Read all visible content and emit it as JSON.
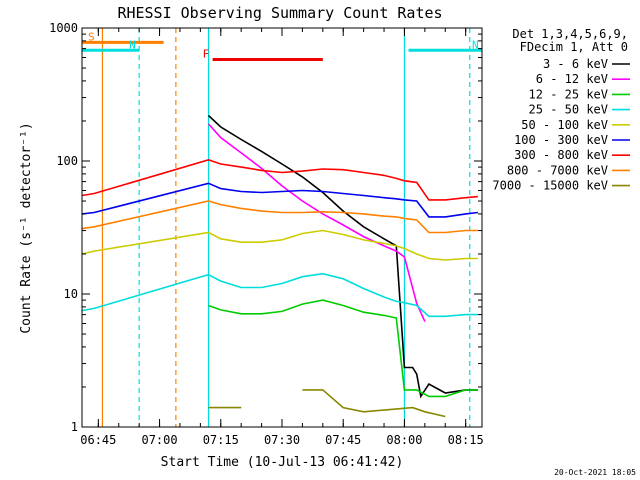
{
  "chart_data": {
    "type": "line",
    "title": "RHESSI Observing Summary Count Rates",
    "xlabel": "Start Time (10-Jul-13 06:41:42)",
    "ylabel": "Count Rate (s⁻¹ detector⁻¹)",
    "xlim": [
      "06:41",
      "08:19"
    ],
    "ylim": [
      1,
      1000
    ],
    "y_scale": "log",
    "x_ticks": [
      "06:45",
      "07:00",
      "07:15",
      "07:30",
      "07:45",
      "08:00",
      "08:15"
    ],
    "y_ticks": [
      "1",
      "10",
      "100",
      "1000"
    ],
    "legend_header": [
      "Det 1,3,4,5,6,9,",
      "FDecim 1, Att 0"
    ],
    "legend_placement": "right",
    "footer": "20-Oct-2021 18:05",
    "series": [
      {
        "name": "3 - 6 keV",
        "color": "#000000",
        "x": [
          "06:41",
          "06:43",
          "06:44",
          "07:12",
          "07:15",
          "07:20",
          "07:25",
          "07:30",
          "07:35",
          "07:40",
          "07:45",
          "07:50",
          "07:55",
          "07:58",
          "08:00",
          "08:01",
          "08:02",
          "08:03",
          "08:04",
          "08:06",
          "08:10",
          "08:15",
          "08:18"
        ],
        "y": [
          null,
          null,
          null,
          220,
          180,
          145,
          118,
          95,
          76,
          58,
          42,
          32,
          26,
          23,
          2.8,
          2.8,
          2.8,
          2.5,
          1.7,
          2.1,
          1.8,
          1.9,
          1.9
        ]
      },
      {
        "name": "6 - 12 keV",
        "color": "#ff00ff",
        "x": [
          "07:12",
          "07:15",
          "07:20",
          "07:25",
          "07:30",
          "07:35",
          "07:40",
          "07:45",
          "07:50",
          "07:55",
          "07:58",
          "08:00",
          "08:03",
          "08:05",
          "08:06"
        ],
        "y": [
          190,
          150,
          115,
          88,
          65,
          50,
          40,
          33,
          27,
          23,
          21,
          19,
          8.5,
          6.2,
          null
        ]
      },
      {
        "name": "12 - 25 keV",
        "color": "#00cc00",
        "x": [
          "07:12",
          "07:15",
          "07:20",
          "07:25",
          "07:30",
          "07:35",
          "07:40",
          "07:45",
          "07:50",
          "07:55",
          "07:58",
          "08:00",
          "08:03",
          "08:06",
          "08:10",
          "08:15",
          "08:18"
        ],
        "y": [
          8.2,
          7.6,
          7.1,
          7.1,
          7.4,
          8.4,
          9.0,
          8.2,
          7.3,
          6.9,
          6.6,
          1.9,
          1.9,
          1.7,
          1.7,
          1.9,
          1.9
        ]
      },
      {
        "name": "25 - 50 keV",
        "color": "#00dddd",
        "x": [
          "06:41",
          "06:44",
          "07:12",
          "07:15",
          "07:20",
          "07:25",
          "07:30",
          "07:35",
          "07:40",
          "07:45",
          "07:50",
          "07:55",
          "07:58",
          "08:00",
          "08:03",
          "08:06",
          "08:10",
          "08:15",
          "08:18"
        ],
        "y": [
          7.5,
          7.8,
          14,
          12.5,
          11.2,
          11.2,
          12,
          13.5,
          14.2,
          13,
          11,
          9.5,
          8.8,
          8.6,
          8.2,
          6.8,
          6.8,
          7,
          7
        ]
      },
      {
        "name": "50 - 100 keV",
        "color": "#cccc00",
        "x": [
          "06:41",
          "06:44",
          "07:12",
          "07:15",
          "07:20",
          "07:25",
          "07:30",
          "07:35",
          "07:40",
          "07:45",
          "07:50",
          "07:55",
          "07:58",
          "08:00",
          "08:03",
          "08:06",
          "08:10",
          "08:15",
          "08:18"
        ],
        "y": [
          20,
          21,
          29,
          26,
          24.5,
          24.5,
          25.5,
          28.5,
          30,
          28,
          25.5,
          24,
          23,
          22,
          20,
          18.5,
          18,
          18.5,
          18.5
        ]
      },
      {
        "name": "100 - 300 keV",
        "color": "#0000ee",
        "x": [
          "06:41",
          "06:44",
          "07:12",
          "07:15",
          "07:20",
          "07:25",
          "07:30",
          "07:35",
          "07:40",
          "07:45",
          "07:50",
          "07:55",
          "07:58",
          "08:00",
          "08:03",
          "08:06",
          "08:10",
          "08:15",
          "08:18"
        ],
        "y": [
          40,
          41,
          68,
          62,
          59,
          58,
          59,
          60,
          59,
          57,
          55,
          53,
          52,
          51,
          50,
          38,
          38,
          40,
          41
        ]
      },
      {
        "name": "300 - 800 keV",
        "color": "#ff0000",
        "x": [
          "06:41",
          "06:44",
          "07:12",
          "07:15",
          "07:20",
          "07:25",
          "07:30",
          "07:35",
          "07:40",
          "07:45",
          "07:50",
          "07:55",
          "07:58",
          "08:00",
          "08:03",
          "08:06",
          "08:10",
          "08:15",
          "08:18"
        ],
        "y": [
          55,
          57,
          102,
          95,
          90,
          85,
          82,
          84,
          87,
          86,
          82,
          78,
          74,
          71,
          69,
          51,
          51,
          53,
          54
        ]
      },
      {
        "name": "800 - 7000 keV",
        "color": "#ff8000",
        "x": [
          "06:41",
          "06:44",
          "07:12",
          "07:15",
          "07:20",
          "07:25",
          "07:30",
          "07:35",
          "07:40",
          "07:45",
          "07:50",
          "07:55",
          "07:58",
          "08:00",
          "08:03",
          "08:06",
          "08:10",
          "08:15",
          "08:18"
        ],
        "y": [
          31,
          32,
          50,
          47,
          44,
          42,
          41,
          41,
          41.5,
          41,
          40,
          38.5,
          38,
          37,
          36,
          29,
          29,
          30,
          30
        ]
      },
      {
        "name": "7000 - 15000 keV",
        "color": "#888800",
        "x": [
          "07:12",
          "07:20",
          "07:30",
          "07:35",
          "07:40",
          "07:45",
          "07:50",
          "08:02",
          "08:05",
          "08:10"
        ],
        "y": [
          1.4,
          1.4,
          null,
          1.9,
          1.9,
          1.4,
          1.3,
          1.4,
          1.3,
          1.2
        ]
      }
    ],
    "annotations": [
      {
        "label": "S",
        "color": "#ff8000",
        "x_start": "06:41",
        "x_end": "07:01",
        "y": 780
      },
      {
        "label": "N",
        "color": "#00dddd",
        "x_start": "06:41",
        "x_end": "06:55",
        "y": 680
      },
      {
        "label": "N",
        "color": "#00dddd",
        "x_start": "08:01",
        "x_end": "08:19",
        "y": 680
      },
      {
        "label": "F",
        "color": "#ee0000",
        "x_start": "07:13",
        "x_end": "07:40",
        "y": 580
      }
    ],
    "vertical_markers": [
      {
        "x": "06:46",
        "color": "#ff8000",
        "style": "solid"
      },
      {
        "x": "06:55",
        "color": "#00dddd",
        "style": "dashed"
      },
      {
        "x": "07:04",
        "color": "#ff8000",
        "style": "dashed"
      },
      {
        "x": "07:12",
        "color": "#00dddd",
        "style": "solid"
      },
      {
        "x": "08:00",
        "color": "#00dddd",
        "style": "solid"
      },
      {
        "x": "08:16",
        "color": "#00dddd",
        "style": "dashed"
      }
    ]
  }
}
